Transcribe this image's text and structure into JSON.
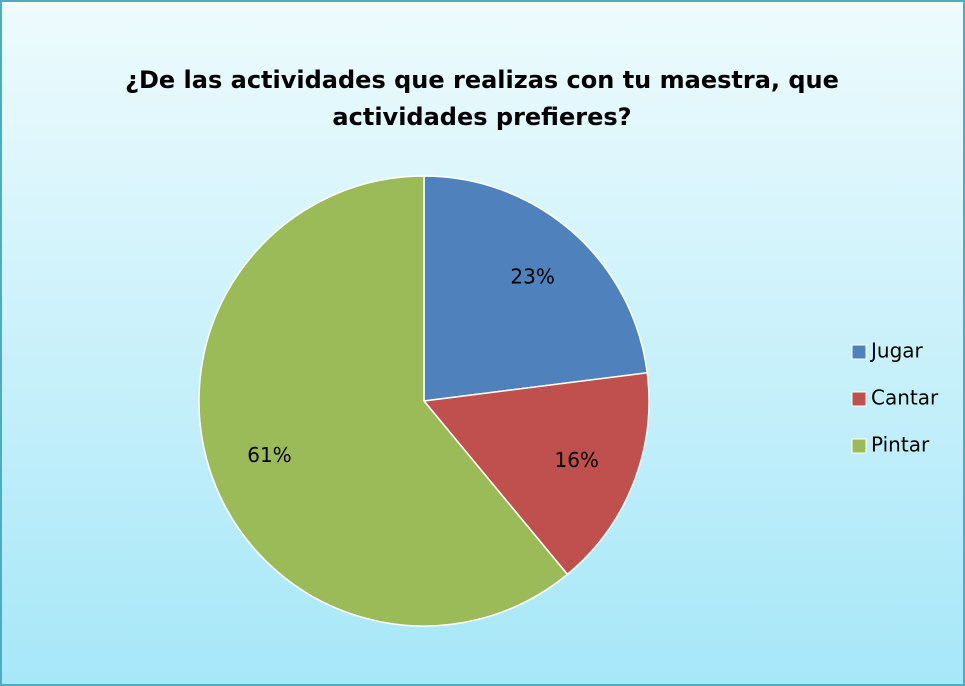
{
  "chart_data": {
    "type": "pie",
    "title": "¿De las actividades que realizas con tu maestra, que actividades prefieres?",
    "categories": [
      "Jugar",
      "Cantar",
      "Pintar"
    ],
    "values": [
      23,
      16,
      61
    ],
    "value_labels": [
      "23%",
      "16%",
      "61%"
    ],
    "colors": [
      "#4f81bd",
      "#c0504d",
      "#9bbb59"
    ],
    "legend": "right"
  }
}
